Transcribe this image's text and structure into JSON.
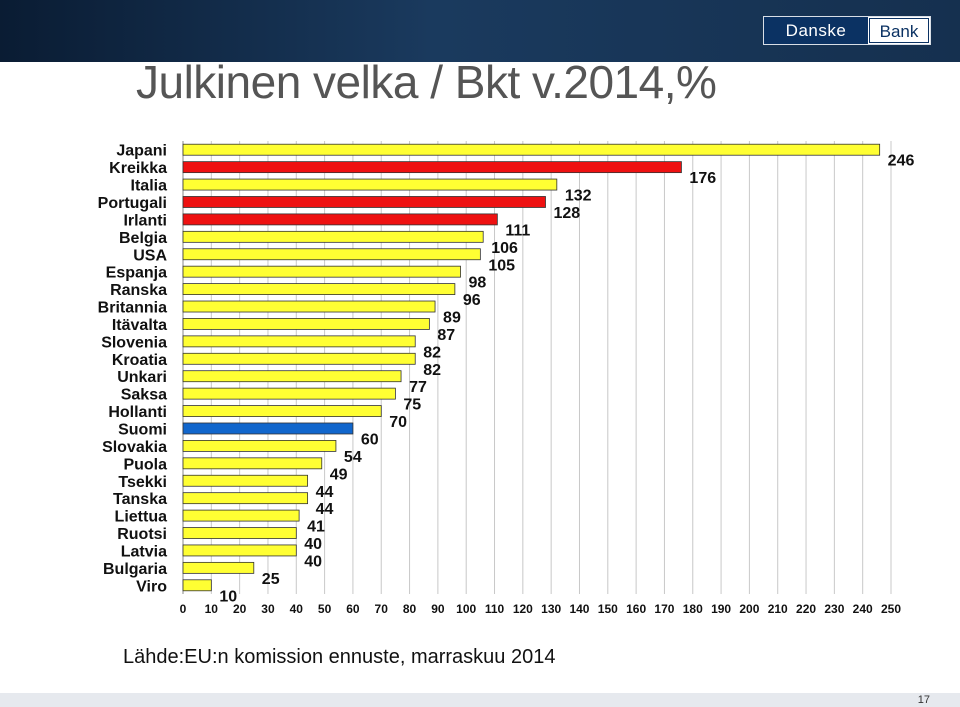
{
  "header": {
    "logo_left": "Danske",
    "logo_right": "Bank",
    "title": "Julkinen velka / Bkt v.2014,%"
  },
  "colors": {
    "default_bar": "#ffff33",
    "highlight_red": "#ee1111",
    "highlight_blue": "#1166cc",
    "bar_stroke": "#333333",
    "grid": "#c8c8c8"
  },
  "chart_data": {
    "type": "bar",
    "orientation": "horizontal",
    "title": "",
    "xlabel": "",
    "ylabel": "",
    "xlim": [
      0,
      250
    ],
    "xticks": [
      0,
      10,
      20,
      30,
      40,
      50,
      60,
      70,
      80,
      90,
      100,
      110,
      120,
      130,
      140,
      150,
      160,
      170,
      180,
      190,
      200,
      210,
      220,
      230,
      240,
      250
    ],
    "grid": true,
    "categories": [
      "Japani",
      "Kreikka",
      "Italia",
      "Portugali",
      "Irlanti",
      "Belgia",
      "USA",
      "Espanja",
      "Ranska",
      "Britannia",
      "Itävalta",
      "Slovenia",
      "Kroatia",
      "Unkari",
      "Saksa",
      "Hollanti",
      "Suomi",
      "Slovakia",
      "Puola",
      "Tsekki",
      "Tanska",
      "Liettua",
      "Ruotsi",
      "Latvia",
      "Bulgaria",
      "Viro"
    ],
    "values": [
      246,
      176,
      132,
      128,
      111,
      106,
      105,
      98,
      96,
      89,
      87,
      82,
      82,
      77,
      75,
      70,
      60,
      54,
      49,
      44,
      44,
      41,
      40,
      40,
      25,
      10
    ],
    "bar_colors": [
      "yellow",
      "red",
      "yellow",
      "red",
      "red",
      "yellow",
      "yellow",
      "yellow",
      "yellow",
      "yellow",
      "yellow",
      "yellow",
      "yellow",
      "yellow",
      "yellow",
      "yellow",
      "blue",
      "yellow",
      "yellow",
      "yellow",
      "yellow",
      "yellow",
      "yellow",
      "yellow",
      "yellow",
      "yellow"
    ]
  },
  "footer": {
    "source": "Lähde:EU:n komission ennuste, marraskuu 2014",
    "page_number": "17"
  }
}
